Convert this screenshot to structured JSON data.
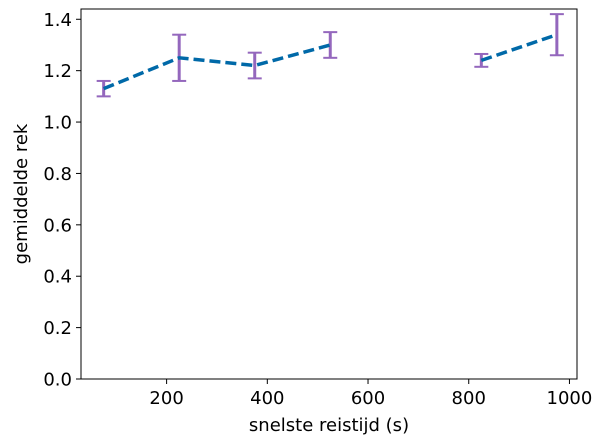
{
  "chart_data": {
    "type": "line",
    "xlabel": "snelste reistijd (s)",
    "ylabel": "gemiddelde rek",
    "xlim": [
      30,
      1015
    ],
    "ylim": [
      0.0,
      1.44
    ],
    "xticks": [
      200,
      400,
      600,
      800,
      1000
    ],
    "yticks": [
      0.0,
      0.2,
      0.4,
      0.6,
      0.8,
      1.0,
      1.2,
      1.4
    ],
    "xtick_labels": [
      "200",
      "400",
      "600",
      "800",
      "1000"
    ],
    "ytick_labels": [
      "0.0",
      "0.2",
      "0.4",
      "0.6",
      "0.8",
      "1.0",
      "1.2",
      "1.4"
    ],
    "grid": false,
    "series": [
      {
        "line_color": "#0069a8",
        "line_style": "dashed",
        "errorbar_color": "#9467bd",
        "points": [
          {
            "x": 75,
            "y": 1.13,
            "err": 0.03
          },
          {
            "x": 225,
            "y": 1.25,
            "err": 0.09
          },
          {
            "x": 375,
            "y": 1.22,
            "err": 0.05
          },
          {
            "x": 525,
            "y": 1.3,
            "err": 0.05
          },
          {
            "x": 825,
            "y": 1.24,
            "err": 0.025
          },
          {
            "x": 975,
            "y": 1.34,
            "err": 0.08
          }
        ],
        "segments": [
          [
            0,
            1,
            2,
            3
          ],
          [
            4,
            5
          ]
        ]
      }
    ]
  }
}
